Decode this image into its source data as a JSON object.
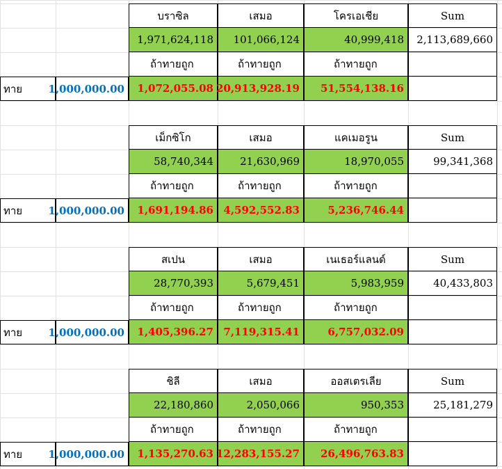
{
  "sheet": {
    "guess_label": "ทาย",
    "correct_label": "ถ้าทายถูก",
    "sum_label": "Sum",
    "draw_label": "เสมอ",
    "fill_color": "#92d050",
    "win_color": "#ff0000",
    "stake_color": "#0070c0"
  },
  "matches": [
    {
      "home": "บราซิล",
      "away": "โครเอเชีย",
      "bets": [
        "1,971,624,118",
        "101,066,124",
        "40,999,418"
      ],
      "sum": "2,113,689,660",
      "stake": "1,000,000.00",
      "payouts": [
        "1,072,055.08",
        "20,913,928.19",
        "51,554,138.16"
      ]
    },
    {
      "home": "เม็กซิโก",
      "away": "แคเมอรูน",
      "bets": [
        "58,740,344",
        "21,630,969",
        "18,970,055"
      ],
      "sum": "99,341,368",
      "stake": "1,000,000.00",
      "payouts": [
        "1,691,194.86",
        "4,592,552.83",
        "5,236,746.44"
      ]
    },
    {
      "home": "สเปน",
      "away": "เนเธอร์แลนด์",
      "bets": [
        "28,770,393",
        "5,679,451",
        "5,983,959"
      ],
      "sum": "40,433,803",
      "stake": "1,000,000.00",
      "payouts": [
        "1,405,396.27",
        "7,119,315.41",
        "6,757,032.09"
      ]
    },
    {
      "home": "ชิลี",
      "away": "ออสเตรเลีย",
      "bets": [
        "22,180,860",
        "2,050,066",
        "950,353"
      ],
      "sum": "25,181,279",
      "stake": "1,000,000.00",
      "payouts": [
        "1,135,270.63",
        "12,283,155.27",
        "26,496,763.83"
      ]
    }
  ]
}
